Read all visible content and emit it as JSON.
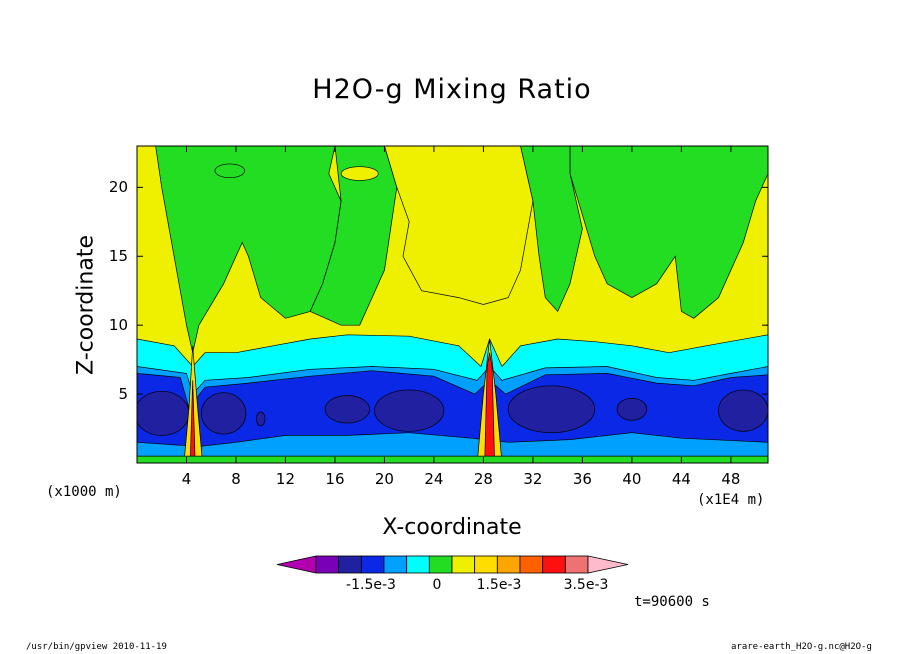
{
  "chart_data": {
    "type": "heatmap",
    "title": "H2O-g Mixing Ratio",
    "xlabel": "X-coordinate",
    "ylabel": "Z-coordinate",
    "x_unit": "(x1000 m)",
    "x_unit2": "(x1E4 m)",
    "x_ticks": [
      "4",
      "8",
      "12",
      "16",
      "20",
      "24",
      "28",
      "32",
      "36",
      "40",
      "44",
      "48"
    ],
    "y_ticks": [
      "5",
      "10",
      "15",
      "20"
    ],
    "xlim": [
      0,
      51
    ],
    "ylim": [
      0,
      23
    ],
    "colorbar": {
      "colors": [
        "#b000b0",
        "#7a00b8",
        "#2020a0",
        "#0a28e6",
        "#00a0ff",
        "#00ffff",
        "#22dd22",
        "#eef000",
        "#ffdd00",
        "#ffa500",
        "#ff6000",
        "#ff1010",
        "#ee7272",
        "#ffbbcc"
      ],
      "tick_labels": [
        "-1.5e-3",
        "0",
        "1.5e-3",
        "3.5e-3"
      ]
    },
    "note": "Horizontally layered field: yellow aloft, green troughs descending near x=10-14 and x=32-36, cyan/blue/dark-blue band below z~9, narrow positive plumes near x=4.5 and x=28.5"
  },
  "footer": {
    "time": "t=90600 s",
    "left_note": "/usr/bin/gpview  2010-11-19",
    "right_note": "arare-earth_H2O-g.nc@H2O-g"
  }
}
